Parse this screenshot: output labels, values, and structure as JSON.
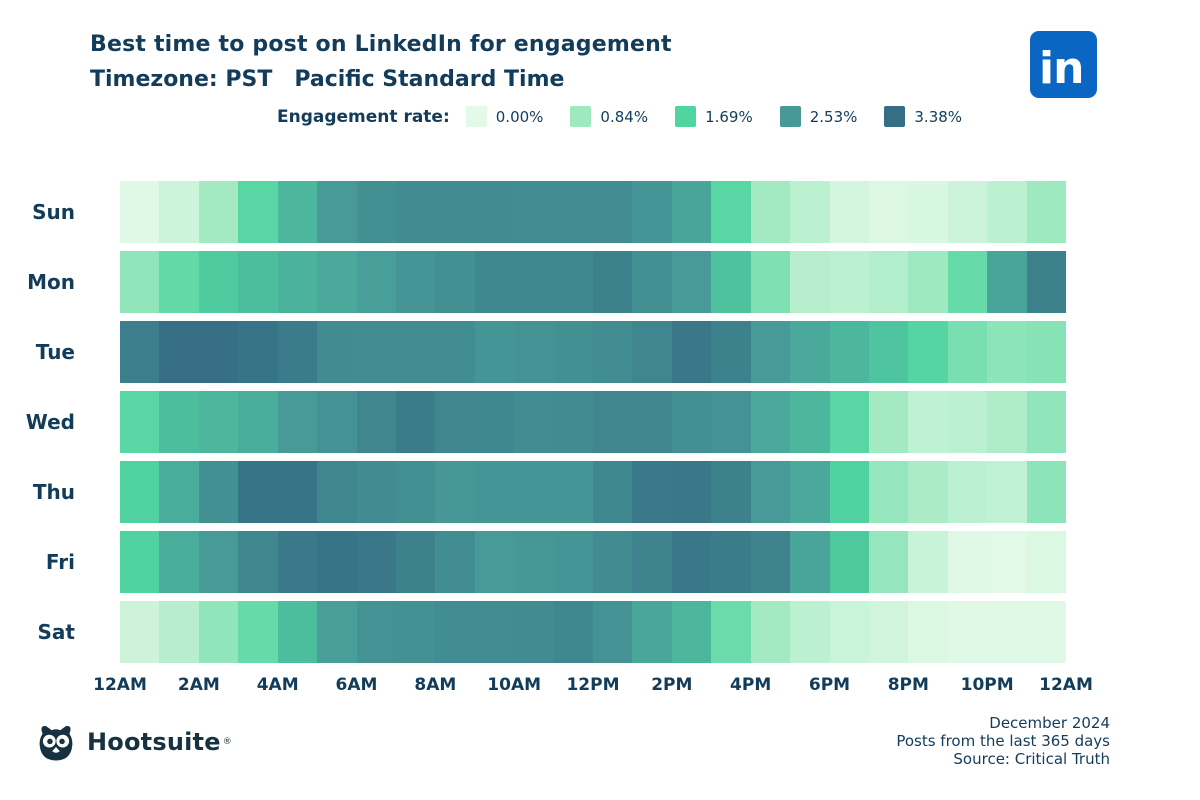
{
  "header": {
    "title": "Best time to post on LinkedIn for engagement",
    "timezone_label": "Timezone: PST",
    "timezone_value": "Pacific Standard Time"
  },
  "legend": {
    "label": "Engagement rate:",
    "items": [
      {
        "label": "0.00%",
        "value": 0.0
      },
      {
        "label": "0.84%",
        "value": 0.84
      },
      {
        "label": "1.69%",
        "value": 1.69
      },
      {
        "label": "2.53%",
        "value": 2.53
      },
      {
        "label": "3.38%",
        "value": 3.38
      }
    ]
  },
  "linkedin_logo": {
    "text": "in",
    "color": "#0a66c2"
  },
  "chart_data": {
    "type": "heatmap",
    "title": "Best time to post on LinkedIn for engagement",
    "unit": "% engagement rate",
    "value_range": [
      0,
      3.38
    ],
    "x_tick_labels": [
      "12AM",
      "2AM",
      "4AM",
      "6AM",
      "8AM",
      "10AM",
      "12PM",
      "2PM",
      "4PM",
      "6PM",
      "8PM",
      "10PM",
      "12AM"
    ],
    "hours_per_row": 24,
    "rows": [
      "Sun",
      "Mon",
      "Tue",
      "Wed",
      "Thu",
      "Fri",
      "Sat"
    ],
    "series": [
      {
        "name": "Sun",
        "values": [
          0.05,
          0.3,
          0.8,
          1.6,
          2.1,
          2.5,
          2.7,
          2.8,
          2.8,
          2.8,
          2.75,
          2.75,
          2.75,
          2.6,
          2.35,
          1.6,
          0.8,
          0.5,
          0.2,
          0.1,
          0.15,
          0.3,
          0.5,
          0.85
        ]
      },
      {
        "name": "Mon",
        "values": [
          1.0,
          1.5,
          1.8,
          2.0,
          2.15,
          2.3,
          2.45,
          2.6,
          2.7,
          2.85,
          2.85,
          2.85,
          3.0,
          2.7,
          2.5,
          1.95,
          1.2,
          0.55,
          0.5,
          0.6,
          0.85,
          1.45,
          2.35,
          3.0
        ]
      },
      {
        "name": "Tue",
        "values": [
          3.05,
          3.35,
          3.35,
          3.25,
          3.1,
          2.8,
          2.75,
          2.75,
          2.75,
          2.6,
          2.65,
          2.7,
          2.75,
          2.9,
          3.2,
          3.0,
          2.5,
          2.3,
          2.1,
          1.9,
          1.65,
          1.25,
          1.05,
          1.1
        ]
      },
      {
        "name": "Wed",
        "values": [
          1.6,
          2.0,
          2.1,
          2.25,
          2.5,
          2.65,
          2.9,
          3.1,
          2.9,
          2.85,
          2.75,
          2.8,
          2.9,
          2.88,
          2.7,
          2.65,
          2.3,
          2.1,
          1.6,
          0.8,
          0.45,
          0.5,
          0.65,
          1.0
        ]
      },
      {
        "name": "Thu",
        "values": [
          1.7,
          2.25,
          2.7,
          3.25,
          3.25,
          2.9,
          2.8,
          2.7,
          2.55,
          2.6,
          2.6,
          2.6,
          2.85,
          3.15,
          3.2,
          3.0,
          2.5,
          2.3,
          1.7,
          0.95,
          0.7,
          0.5,
          0.42,
          1.05
        ]
      },
      {
        "name": "Fri",
        "values": [
          1.7,
          2.25,
          2.5,
          2.9,
          3.15,
          3.25,
          3.2,
          3.0,
          2.75,
          2.5,
          2.55,
          2.6,
          2.8,
          2.95,
          3.17,
          3.1,
          2.95,
          2.35,
          1.85,
          0.95,
          0.35,
          0.05,
          0.03,
          0.12
        ]
      },
      {
        "name": "Sat",
        "values": [
          0.28,
          0.55,
          1.0,
          1.45,
          2.0,
          2.45,
          2.65,
          2.68,
          2.75,
          2.75,
          2.8,
          2.85,
          2.65,
          2.32,
          2.1,
          1.4,
          0.8,
          0.5,
          0.32,
          0.25,
          0.12,
          0.05,
          0.05,
          0.05
        ]
      }
    ],
    "colormap": [
      {
        "value": 0.0,
        "color": "#e4fae8"
      },
      {
        "value": 0.845,
        "color": "#9fe9c0"
      },
      {
        "value": 1.69,
        "color": "#50d4a0"
      },
      {
        "value": 2.535,
        "color": "#479897"
      },
      {
        "value": 3.38,
        "color": "#356e85"
      }
    ],
    "legend_position": "top",
    "grid": false
  },
  "footer": {
    "brand": "Hootsuite",
    "registered": "®",
    "lines": [
      "December 2024",
      "Posts from the last 365 days",
      "Source: Critical Truth"
    ]
  },
  "colors": {
    "text": "#133c5b",
    "linkedin_blue": "#0a66c2",
    "brand_dark": "#16313f"
  }
}
